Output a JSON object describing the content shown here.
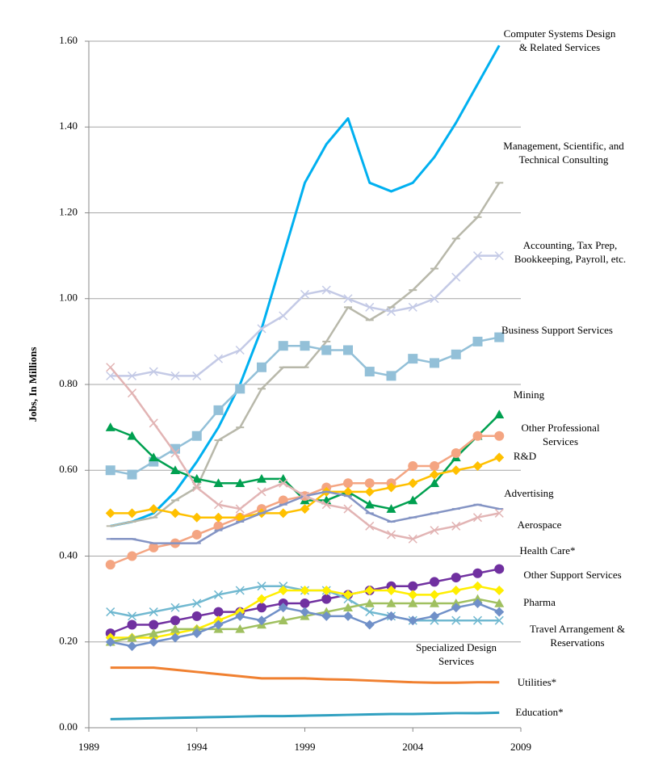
{
  "chart_data": {
    "type": "line",
    "y_label": "Jobs, In Millions",
    "x": [
      1990,
      1991,
      1992,
      1993,
      1994,
      1995,
      1996,
      1997,
      1998,
      1999,
      2000,
      2001,
      2002,
      2003,
      2004,
      2005,
      2006,
      2007,
      2008
    ],
    "xlim": [
      1989,
      2009
    ],
    "xticks": [
      1989,
      1994,
      1999,
      2004,
      2009
    ],
    "ylim": [
      0,
      1.6
    ],
    "yticks": [
      {
        "value": 0,
        "label": "0.00"
      },
      {
        "value": 0.2,
        "label": "0.20"
      },
      {
        "value": 0.4,
        "label": "0.40"
      },
      {
        "value": 0.6,
        "label": "0.60"
      },
      {
        "value": 0.8,
        "label": "0.80"
      },
      {
        "value": 1.0,
        "label": "1.00"
      },
      {
        "value": 1.2,
        "label": "1.20"
      },
      {
        "value": 1.4,
        "label": "1.40"
      },
      {
        "value": 1.6,
        "label": "1.60"
      }
    ],
    "grid": true,
    "series": [
      {
        "name": "Computer Systems Design & Related Services",
        "color": "#00b0f0",
        "marker": "none",
        "values": [
          0.47,
          0.48,
          0.5,
          0.55,
          0.62,
          0.7,
          0.8,
          0.93,
          1.1,
          1.27,
          1.36,
          1.42,
          1.27,
          1.25,
          1.27,
          1.33,
          1.41,
          1.5,
          1.59
        ]
      },
      {
        "name": "Management, Scientific, and Technical Consulting",
        "color": "#b8b8aa",
        "marker": "dash",
        "values": [
          0.47,
          0.48,
          0.49,
          0.53,
          0.56,
          0.67,
          0.7,
          0.79,
          0.84,
          0.84,
          0.9,
          0.98,
          0.95,
          0.98,
          1.02,
          1.07,
          1.14,
          1.19,
          1.27
        ]
      },
      {
        "name": "Accounting, Tax Prep, Bookkeeping, Payroll, etc.",
        "color": "#c4cae6",
        "marker": "x",
        "values": [
          0.82,
          0.82,
          0.83,
          0.82,
          0.82,
          0.86,
          0.88,
          0.93,
          0.96,
          1.01,
          1.02,
          1.0,
          0.98,
          0.97,
          0.98,
          1.0,
          1.05,
          1.1,
          1.1
        ]
      },
      {
        "name": "Business Support Services",
        "color": "#93c0d8",
        "marker": "square",
        "values": [
          0.6,
          0.59,
          0.62,
          0.65,
          0.68,
          0.74,
          0.79,
          0.84,
          0.89,
          0.89,
          0.88,
          0.88,
          0.83,
          0.82,
          0.86,
          0.85,
          0.87,
          0.9,
          0.91
        ]
      },
      {
        "name": "Mining",
        "color": "#00a050",
        "marker": "triangle",
        "values": [
          0.7,
          0.68,
          0.63,
          0.6,
          0.58,
          0.57,
          0.57,
          0.58,
          0.58,
          0.53,
          0.53,
          0.55,
          0.52,
          0.51,
          0.53,
          0.57,
          0.63,
          0.68,
          0.73
        ]
      },
      {
        "name": "Other Professional Services",
        "color": "#f4a582",
        "marker": "circle",
        "values": [
          0.38,
          0.4,
          0.42,
          0.43,
          0.45,
          0.47,
          0.49,
          0.51,
          0.53,
          0.54,
          0.56,
          0.57,
          0.57,
          0.57,
          0.61,
          0.61,
          0.64,
          0.68,
          0.68
        ]
      },
      {
        "name": "R&D",
        "color": "#ffc000",
        "marker": "diamond",
        "values": [
          0.5,
          0.5,
          0.51,
          0.5,
          0.49,
          0.49,
          0.49,
          0.5,
          0.5,
          0.51,
          0.55,
          0.55,
          0.55,
          0.56,
          0.57,
          0.59,
          0.6,
          0.61,
          0.63
        ]
      },
      {
        "name": "Advertising",
        "color": "#8494c4",
        "marker": "dash",
        "values": [
          0.44,
          0.44,
          0.43,
          0.43,
          0.43,
          0.46,
          0.48,
          0.5,
          0.52,
          0.54,
          0.55,
          0.54,
          0.5,
          0.48,
          0.49,
          0.5,
          0.51,
          0.52,
          0.51
        ]
      },
      {
        "name": "Aerospace",
        "color": "#e2b4b4",
        "marker": "x",
        "values": [
          0.84,
          0.78,
          0.71,
          0.64,
          0.56,
          0.52,
          0.51,
          0.55,
          0.57,
          0.54,
          0.52,
          0.51,
          0.47,
          0.45,
          0.44,
          0.46,
          0.47,
          0.49,
          0.5
        ]
      },
      {
        "name": "Health Care*",
        "color": "#7030a0",
        "marker": "circle",
        "values": [
          0.22,
          0.24,
          0.24,
          0.25,
          0.26,
          0.27,
          0.27,
          0.28,
          0.29,
          0.29,
          0.3,
          0.31,
          0.32,
          0.33,
          0.33,
          0.34,
          0.35,
          0.36,
          0.37
        ]
      },
      {
        "name": "Other Support Services",
        "color": "#70b8d0",
        "marker": "x",
        "values": [
          0.27,
          0.26,
          0.27,
          0.28,
          0.29,
          0.31,
          0.32,
          0.33,
          0.33,
          0.32,
          0.32,
          0.3,
          0.27,
          0.26,
          0.25,
          0.25,
          0.25,
          0.25,
          0.25
        ]
      },
      {
        "name": "Pharma",
        "color": "#ffee00",
        "marker": "diamond",
        "values": [
          0.21,
          0.21,
          0.21,
          0.22,
          0.23,
          0.25,
          0.27,
          0.3,
          0.32,
          0.32,
          0.32,
          0.31,
          0.32,
          0.32,
          0.31,
          0.31,
          0.32,
          0.33,
          0.32
        ]
      },
      {
        "name": "Travel Arrangement & Reservations",
        "color": "#a0c060",
        "marker": "triangle",
        "values": [
          0.2,
          0.21,
          0.22,
          0.23,
          0.23,
          0.23,
          0.23,
          0.24,
          0.25,
          0.26,
          0.27,
          0.28,
          0.29,
          0.29,
          0.29,
          0.29,
          0.29,
          0.3,
          0.29
        ]
      },
      {
        "name": "Specialized Design Services",
        "color": "#7090c8",
        "marker": "diamond",
        "values": [
          0.2,
          0.19,
          0.2,
          0.21,
          0.22,
          0.24,
          0.26,
          0.25,
          0.28,
          0.27,
          0.26,
          0.26,
          0.24,
          0.26,
          0.25,
          0.26,
          0.28,
          0.29,
          0.27
        ]
      },
      {
        "name": "Utilities*",
        "color": "#f08030",
        "marker": "none",
        "values": [
          0.14,
          0.14,
          0.14,
          0.135,
          0.13,
          0.125,
          0.12,
          0.115,
          0.115,
          0.115,
          0.113,
          0.112,
          0.11,
          0.108,
          0.106,
          0.105,
          0.105,
          0.106,
          0.106
        ]
      },
      {
        "name": "Education*",
        "color": "#30a0c0",
        "marker": "none",
        "values": [
          0.02,
          0.021,
          0.022,
          0.023,
          0.024,
          0.025,
          0.026,
          0.027,
          0.027,
          0.028,
          0.029,
          0.03,
          0.031,
          0.032,
          0.032,
          0.033,
          0.034,
          0.034,
          0.035
        ]
      }
    ]
  }
}
